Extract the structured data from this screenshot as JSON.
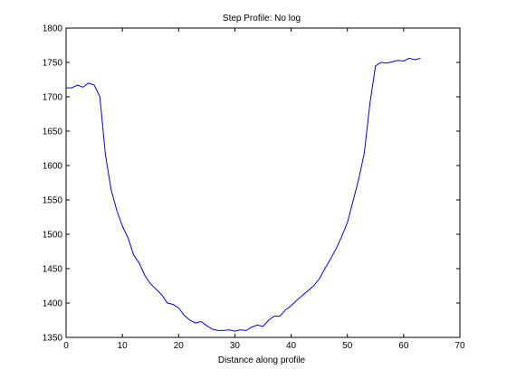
{
  "chart_data": {
    "type": "line",
    "title": "Step Profile: No log",
    "xlabel": "Distance along profile",
    "ylabel": "",
    "xlim": [
      0,
      70
    ],
    "ylim": [
      1350,
      1800
    ],
    "xticks": [
      0,
      10,
      20,
      30,
      40,
      50,
      60,
      70
    ],
    "yticks": [
      1350,
      1400,
      1450,
      1500,
      1550,
      1600,
      1650,
      1700,
      1750,
      1800
    ],
    "grid": false,
    "line_color": "#0000ff",
    "series": [
      {
        "x": [
          0,
          1,
          2,
          3,
          4,
          5,
          6,
          7,
          8,
          9,
          10,
          11,
          12,
          13,
          14,
          15,
          16,
          17,
          18,
          19,
          20,
          21,
          22,
          23,
          24,
          25,
          26,
          27,
          28,
          29,
          30,
          31,
          32,
          33,
          34,
          35,
          36,
          37,
          38,
          39,
          40,
          41,
          42,
          43,
          44,
          45,
          46,
          47,
          48,
          49,
          50,
          51,
          52,
          53,
          54,
          55,
          56,
          57,
          58,
          59,
          60,
          61,
          62,
          63
        ],
        "y": [
          1713,
          1713,
          1717,
          1714,
          1720,
          1717,
          1700,
          1615,
          1565,
          1535,
          1512,
          1495,
          1470,
          1458,
          1440,
          1428,
          1420,
          1412,
          1400,
          1398,
          1393,
          1382,
          1375,
          1371,
          1373,
          1367,
          1362,
          1360,
          1360,
          1361,
          1359,
          1361,
          1360,
          1365,
          1368,
          1366,
          1375,
          1381,
          1381,
          1390,
          1396,
          1404,
          1411,
          1418,
          1425,
          1435,
          1450,
          1464,
          1479,
          1497,
          1517,
          1548,
          1580,
          1618,
          1690,
          1745,
          1750,
          1749,
          1751,
          1753,
          1752,
          1756,
          1754,
          1756
        ]
      }
    ]
  }
}
